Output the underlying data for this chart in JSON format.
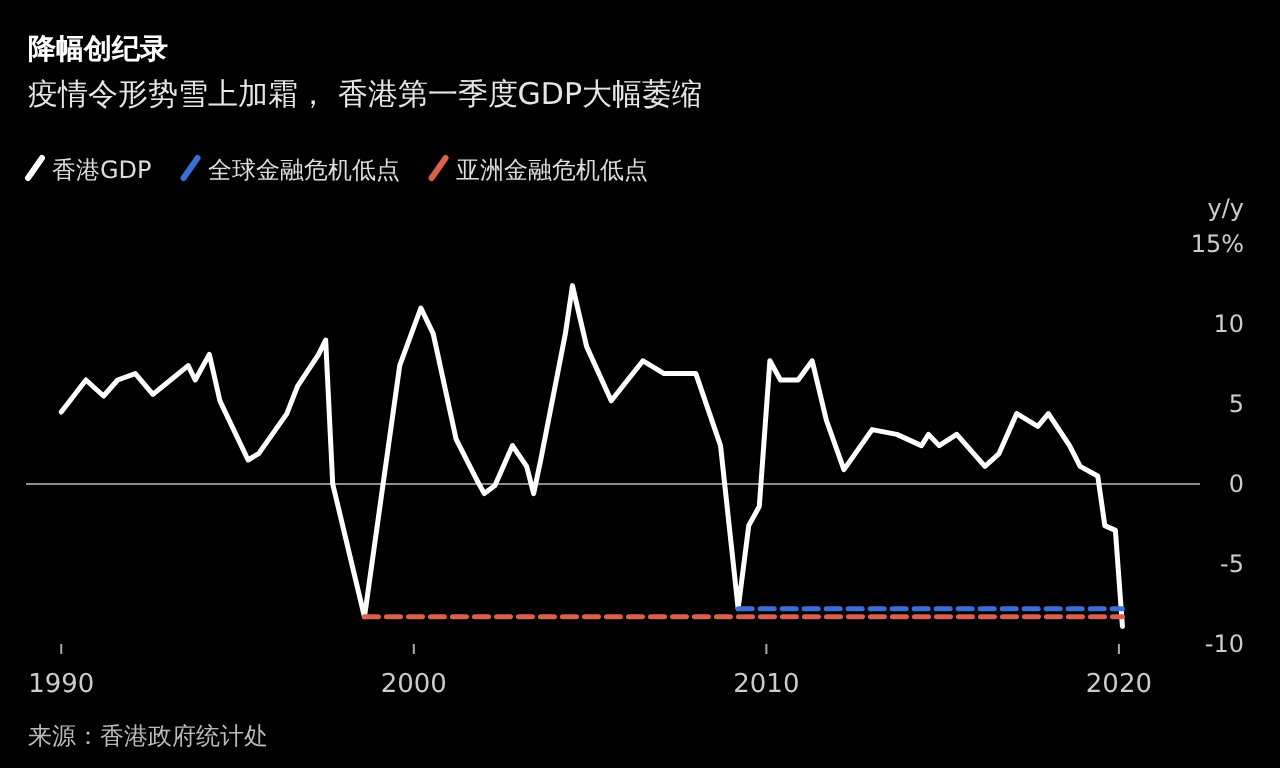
{
  "chart_data": {
    "type": "line",
    "title": "降幅创纪录",
    "subtitle": "疫情令形势雪上加霜， 香港第一季度GDP大幅萎缩",
    "ylabel": "y/y",
    "annotations": [
      "来源：香港政府统计处"
    ],
    "legend": "top left",
    "xlim": [
      1989,
      2022.3
    ],
    "xticks": [
      1990,
      2000,
      2010,
      2020
    ],
    "ylim": [
      -10,
      15
    ],
    "yticks": [
      {
        "value": 15,
        "label": "15%"
      },
      10,
      5,
      0,
      -5,
      -10
    ],
    "ref_lines": [
      {
        "axis": "y",
        "value": 0,
        "color": "#8c8c8c"
      }
    ],
    "series": [
      {
        "name": "香港GDP",
        "color": "#ffffff",
        "line_style": "solid",
        "x": [
          1990,
          1990.7,
          1991.2,
          1991.6,
          1992.1,
          1992.6,
          1993.1,
          1993.6,
          1993.8,
          1994.2,
          1994.5,
          1995.3,
          1995.6,
          1996.4,
          1996.7,
          1997.3,
          1997.5,
          1997.7,
          1998.6,
          1999.6,
          2000.2,
          2000.55,
          2001.2,
          2001.8,
          2002.0,
          2002.3,
          2002.8,
          2003.2,
          2003.4,
          2003.6,
          2004.3,
          2004.5,
          2004.9,
          2005.6,
          2006.5,
          2007.1,
          2008.0,
          2008.7,
          2009.2,
          2009.5,
          2009.8,
          2010.1,
          2010.4,
          2010.9,
          2011.3,
          2011.7,
          2012.2,
          2013.0,
          2013.7,
          2014.4,
          2014.6,
          2014.9,
          2015.4,
          2016.2,
          2016.6,
          2017.1,
          2017.7,
          2018.0,
          2018.6,
          2018.9,
          2019.4,
          2019.6,
          2019.9,
          2020.1
        ],
        "values": [
          4.5,
          6.5,
          5.5,
          6.5,
          6.9,
          5.6,
          6.5,
          7.4,
          6.5,
          8.1,
          5.2,
          1.5,
          1.9,
          4.4,
          6.1,
          8.1,
          9,
          0,
          -8.3,
          7.4,
          11,
          9.4,
          2.8,
          0.2,
          -0.6,
          -0.1,
          2.4,
          1.1,
          -0.6,
          1.5,
          9.4,
          12.4,
          8.6,
          5.2,
          7.7,
          6.9,
          6.9,
          2.4,
          -7.8,
          -2.6,
          -1.4,
          7.7,
          6.5,
          6.5,
          7.7,
          4,
          0.9,
          3.4,
          3.1,
          2.4,
          3.1,
          2.4,
          3.1,
          1.1,
          1.9,
          4.4,
          3.6,
          4.4,
          2.4,
          1.1,
          0.5,
          -2.6,
          -2.9,
          -8.9
        ]
      },
      {
        "name": "全球金融危机低点",
        "color": "#3a6fd8",
        "line_style": "dashed",
        "x": [
          2009.2,
          2020.1
        ],
        "values": [
          -7.8,
          -7.8
        ]
      },
      {
        "name": "亚洲金融危机低点",
        "color": "#d9604c",
        "line_style": "dashed",
        "x": [
          1998.6,
          2020.1
        ],
        "values": [
          -8.3,
          -8.3
        ]
      }
    ]
  }
}
